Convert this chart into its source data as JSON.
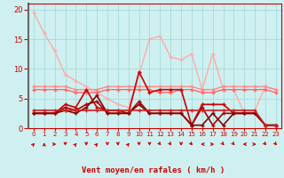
{
  "background_color": "#cff0f0",
  "grid_color": "#aadddd",
  "xlabel": "Vent moyen/en rafales ( km/h )",
  "xlabel_color": "#cc0000",
  "tick_color": "#cc0000",
  "ylim": [
    0,
    21
  ],
  "xlim": [
    -0.5,
    23.5
  ],
  "yticks": [
    0,
    5,
    10,
    15,
    20
  ],
  "xticks": [
    0,
    1,
    2,
    3,
    4,
    5,
    6,
    7,
    8,
    9,
    10,
    11,
    12,
    13,
    14,
    15,
    16,
    17,
    18,
    19,
    20,
    21,
    22,
    23
  ],
  "series": [
    {
      "x": [
        0,
        1,
        2,
        3,
        4,
        5,
        6,
        7,
        8,
        9,
        10,
        11,
        12,
        13,
        14,
        15,
        16,
        17,
        18,
        19,
        20,
        21,
        22,
        23
      ],
      "y": [
        19.5,
        16,
        13,
        9,
        8,
        7,
        6,
        5,
        4,
        3.5,
        9,
        15,
        15.5,
        12,
        11.5,
        12.5,
        6.5,
        12.5,
        6.5,
        6.5,
        2.5,
        3.0,
        7.0,
        6.5
      ],
      "color": "#ffaaaa",
      "lw": 1.0,
      "marker": "+",
      "ms": 3.5
    },
    {
      "x": [
        0,
        1,
        2,
        3,
        4,
        5,
        6,
        7,
        8,
        9,
        10,
        11,
        12,
        13,
        14,
        15,
        16,
        17,
        18,
        19,
        20,
        21,
        22,
        23
      ],
      "y": [
        7.0,
        7.0,
        7.0,
        7.0,
        6.5,
        6.5,
        6.5,
        7.0,
        7.0,
        7.0,
        7.0,
        7.0,
        7.0,
        7.0,
        7.0,
        7.0,
        6.5,
        6.5,
        7.0,
        7.0,
        7.0,
        7.0,
        7.0,
        6.5
      ],
      "color": "#ff8888",
      "lw": 1.0,
      "marker": "+",
      "ms": 3.5
    },
    {
      "x": [
        0,
        1,
        2,
        3,
        4,
        5,
        6,
        7,
        8,
        9,
        10,
        11,
        12,
        13,
        14,
        15,
        16,
        17,
        18,
        19,
        20,
        21,
        22,
        23
      ],
      "y": [
        6.5,
        6.5,
        6.5,
        6.5,
        6.0,
        6.0,
        6.0,
        6.5,
        6.5,
        6.5,
        6.5,
        6.5,
        6.0,
        6.0,
        6.5,
        6.5,
        6.0,
        6.0,
        6.5,
        6.5,
        6.5,
        6.5,
        6.5,
        6.0
      ],
      "color": "#ff6666",
      "lw": 1.0,
      "marker": "+",
      "ms": 3.5
    },
    {
      "x": [
        0,
        1,
        2,
        3,
        4,
        5,
        6,
        7,
        8,
        9,
        10,
        11,
        12,
        13,
        14,
        15,
        16,
        17,
        18,
        19,
        20,
        21,
        22,
        23
      ],
      "y": [
        2.5,
        2.5,
        2.5,
        4.0,
        3.5,
        6.5,
        3.5,
        3.0,
        3.0,
        2.5,
        9.5,
        6.0,
        6.5,
        6.5,
        6.5,
        0.5,
        4.0,
        4.0,
        4.0,
        2.5,
        2.5,
        2.5,
        0.5,
        0.5
      ],
      "color": "#cc0000",
      "lw": 1.2,
      "marker": "+",
      "ms": 3.5
    },
    {
      "x": [
        0,
        1,
        2,
        3,
        4,
        5,
        6,
        7,
        8,
        9,
        10,
        11,
        12,
        13,
        14,
        15,
        16,
        17,
        18,
        19,
        20,
        21,
        22,
        23
      ],
      "y": [
        2.5,
        2.5,
        2.5,
        3.5,
        3.0,
        4.0,
        4.5,
        2.5,
        2.5,
        2.5,
        4.5,
        2.5,
        2.5,
        2.5,
        2.5,
        0.5,
        3.5,
        0.5,
        2.5,
        2.5,
        2.5,
        2.5,
        0.5,
        0.5
      ],
      "color": "#aa0000",
      "lw": 1.2,
      "marker": "+",
      "ms": 3.5
    },
    {
      "x": [
        0,
        1,
        2,
        3,
        4,
        5,
        6,
        7,
        8,
        9,
        10,
        11,
        12,
        13,
        14,
        15,
        16,
        17,
        18,
        19,
        20,
        21,
        22,
        23
      ],
      "y": [
        2.5,
        2.5,
        2.5,
        3.0,
        2.5,
        3.5,
        5.5,
        2.5,
        2.5,
        2.5,
        4.0,
        2.5,
        2.5,
        2.5,
        2.5,
        0.5,
        0.5,
        2.5,
        0.5,
        2.5,
        2.5,
        2.5,
        0.5,
        0.5
      ],
      "color": "#880000",
      "lw": 1.2,
      "marker": "+",
      "ms": 3.5
    },
    {
      "x": [
        0,
        1,
        2,
        3,
        4,
        5,
        6,
        7,
        8,
        9,
        10,
        11,
        12,
        13,
        14,
        15,
        16,
        17,
        18,
        19,
        20,
        21,
        22,
        23
      ],
      "y": [
        3.0,
        3.0,
        3.0,
        3.0,
        3.0,
        3.0,
        3.0,
        3.0,
        3.0,
        3.0,
        3.0,
        3.0,
        3.0,
        3.0,
        3.0,
        3.0,
        3.0,
        3.0,
        3.0,
        3.0,
        3.0,
        3.0,
        0.5,
        0.5
      ],
      "color": "#cc2222",
      "lw": 1.2,
      "marker": "+",
      "ms": 3.5
    }
  ],
  "wind_arrows": {
    "x": [
      0,
      1,
      2,
      3,
      4,
      5,
      6,
      7,
      8,
      9,
      10,
      11,
      12,
      13,
      14,
      15,
      16,
      17,
      18,
      19,
      20,
      21,
      22,
      23
    ],
    "angles": [
      45,
      0,
      90,
      180,
      45,
      180,
      45,
      180,
      180,
      45,
      180,
      180,
      135,
      135,
      180,
      135,
      270,
      90,
      135,
      135,
      270,
      90,
      135,
      135
    ]
  }
}
